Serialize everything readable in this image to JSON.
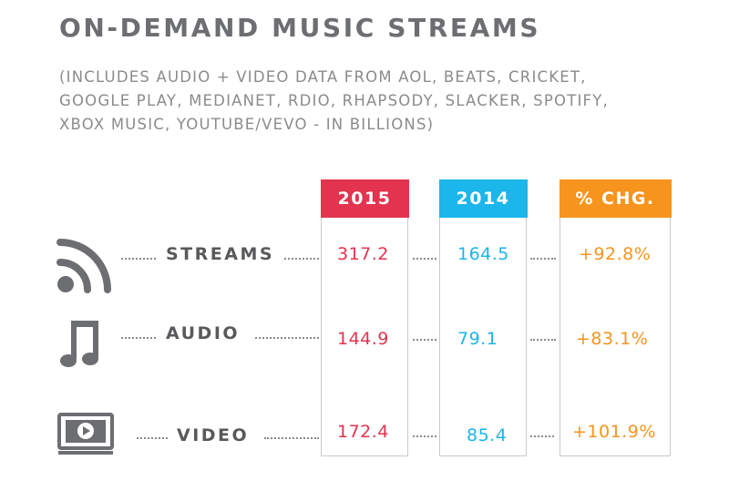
{
  "header": {
    "title": "ON-DEMAND MUSIC STREAMS",
    "subtitle_lines": [
      "(INCLUDES AUDIO + VIDEO DATA FROM AOL, BEATS, CRICKET,",
      "GOOGLE PLAY, MEDIANET, RDIO, RHAPSODY, SLACKER, SPOTIFY,",
      "XBOX MUSIC, YOUTUBE/VEVO - IN BILLIONS)"
    ]
  },
  "colors": {
    "year_2015": "#e3344f",
    "year_2014": "#1bb6ea",
    "pct_change": "#f7941d",
    "label_text": "#58595b"
  },
  "chart_data": {
    "type": "table",
    "columns": [
      "2015",
      "2014",
      "% CHG."
    ],
    "rows": [
      {
        "label": "STREAMS",
        "icon": "wifi-stream-icon",
        "values": [
          "317.2",
          "164.5",
          "+92.8%"
        ]
      },
      {
        "label": "AUDIO",
        "icon": "music-note-icon",
        "values": [
          "144.9",
          "79.1",
          "+83.1%"
        ]
      },
      {
        "label": "VIDEO",
        "icon": "tv-play-icon",
        "values": [
          "172.4",
          "85.4",
          "+101.9%"
        ]
      }
    ]
  }
}
